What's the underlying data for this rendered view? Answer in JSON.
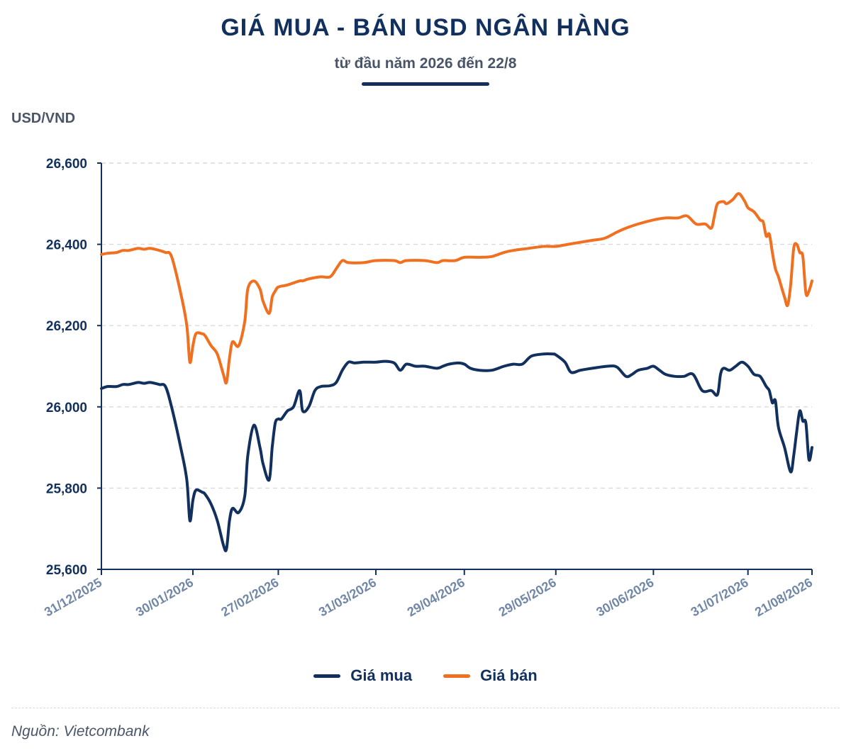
{
  "header": {
    "title": "GIÁ MUA - BÁN USD NGÂN HÀNG",
    "subtitle": "từ đầu năm 2026 đến 22/8"
  },
  "footer": {
    "source": "Nguồn: Vietcombank"
  },
  "colors": {
    "navy": "#12305e",
    "orange": "#f07020",
    "gray_text": "#4a5568",
    "axis_label": "#7187a6",
    "grid": "#d6dbe3"
  },
  "chart_data": {
    "type": "line",
    "title": "GIÁ MUA - BÁN USD NGÂN HÀNG",
    "subtitle": "từ đầu năm 2026 đến 22/8",
    "ylabel": "USD/VND",
    "xlabel": "",
    "ylim": [
      25600,
      26600
    ],
    "yticks": [
      25600,
      25800,
      26000,
      26200,
      26400,
      26600
    ],
    "ytick_labels": [
      "25,600",
      "25,800",
      "26,000",
      "26,200",
      "26,400",
      "26,600"
    ],
    "xlim": [
      "2025-12-31",
      "2026-08-21"
    ],
    "xticks": [
      "2025-12-31",
      "2026-01-30",
      "2026-02-27",
      "2026-03-31",
      "2026-04-29",
      "2026-05-29",
      "2026-06-30",
      "2026-07-31",
      "2026-08-21"
    ],
    "xtick_labels": [
      "31/12/2025",
      "30/01/2026",
      "27/02/2026",
      "31/03/2026",
      "29/04/2026",
      "29/05/2026",
      "30/06/2026",
      "31/07/2026",
      "21/08/2026"
    ],
    "grid": "horizontal dashed",
    "legend_position": "bottom-center",
    "series": [
      {
        "name": "Giá mua",
        "color": "#12305e",
        "points": [
          [
            "2025-12-31",
            26045
          ],
          [
            "2026-01-02",
            26050
          ],
          [
            "2026-01-05",
            26050
          ],
          [
            "2026-01-07",
            26055
          ],
          [
            "2026-01-09",
            26055
          ],
          [
            "2026-01-12",
            26060
          ],
          [
            "2026-01-14",
            26058
          ],
          [
            "2026-01-16",
            26060
          ],
          [
            "2026-01-19",
            26055
          ],
          [
            "2026-01-21",
            26050
          ],
          [
            "2026-01-23",
            26000
          ],
          [
            "2026-01-26",
            25900
          ],
          [
            "2026-01-28",
            25820
          ],
          [
            "2026-01-29",
            25720
          ],
          [
            "2026-01-30",
            25770
          ],
          [
            "2026-01-31",
            25795
          ],
          [
            "2026-02-02",
            25790
          ],
          [
            "2026-02-03",
            25785
          ],
          [
            "2026-02-05",
            25760
          ],
          [
            "2026-02-07",
            25720
          ],
          [
            "2026-02-09",
            25660
          ],
          [
            "2026-02-10",
            25650
          ],
          [
            "2026-02-11",
            25720
          ],
          [
            "2026-02-12",
            25750
          ],
          [
            "2026-02-14",
            25740
          ],
          [
            "2026-02-16",
            25780
          ],
          [
            "2026-02-17",
            25880
          ],
          [
            "2026-02-19",
            25955
          ],
          [
            "2026-02-21",
            25900
          ],
          [
            "2026-02-22",
            25860
          ],
          [
            "2026-02-24",
            25820
          ],
          [
            "2026-02-25",
            25900
          ],
          [
            "2026-02-26",
            25960
          ],
          [
            "2026-02-27",
            25970
          ],
          [
            "2026-02-28",
            25970
          ],
          [
            "2026-03-02",
            25990
          ],
          [
            "2026-03-04",
            26000
          ],
          [
            "2026-03-06",
            26040
          ],
          [
            "2026-03-07",
            25990
          ],
          [
            "2026-03-09",
            26000
          ],
          [
            "2026-03-11",
            26040
          ],
          [
            "2026-03-13",
            26050
          ],
          [
            "2026-03-16",
            26052
          ],
          [
            "2026-03-18",
            26060
          ],
          [
            "2026-03-20",
            26090
          ],
          [
            "2026-03-22",
            26110
          ],
          [
            "2026-03-24",
            26108
          ],
          [
            "2026-03-27",
            26110
          ],
          [
            "2026-03-31",
            26110
          ],
          [
            "2026-04-03",
            26112
          ],
          [
            "2026-04-06",
            26108
          ],
          [
            "2026-04-08",
            26090
          ],
          [
            "2026-04-10",
            26105
          ],
          [
            "2026-04-13",
            26100
          ],
          [
            "2026-04-16",
            26100
          ],
          [
            "2026-04-20",
            26095
          ],
          [
            "2026-04-22",
            26100
          ],
          [
            "2026-04-24",
            26105
          ],
          [
            "2026-04-27",
            26108
          ],
          [
            "2026-04-29",
            26105
          ],
          [
            "2026-05-01",
            26095
          ],
          [
            "2026-05-04",
            26090
          ],
          [
            "2026-05-08",
            26090
          ],
          [
            "2026-05-12",
            26100
          ],
          [
            "2026-05-15",
            26105
          ],
          [
            "2026-05-18",
            26105
          ],
          [
            "2026-05-21",
            26125
          ],
          [
            "2026-05-25",
            26130
          ],
          [
            "2026-05-28",
            26130
          ],
          [
            "2026-05-29",
            26128
          ],
          [
            "2026-06-01",
            26110
          ],
          [
            "2026-06-03",
            26085
          ],
          [
            "2026-06-06",
            26090
          ],
          [
            "2026-06-10",
            26095
          ],
          [
            "2026-06-15",
            26100
          ],
          [
            "2026-06-18",
            26098
          ],
          [
            "2026-06-21",
            26075
          ],
          [
            "2026-06-23",
            26080
          ],
          [
            "2026-06-25",
            26090
          ],
          [
            "2026-06-28",
            26095
          ],
          [
            "2026-06-30",
            26100
          ],
          [
            "2026-07-02",
            26090
          ],
          [
            "2026-07-04",
            26080
          ],
          [
            "2026-07-07",
            26075
          ],
          [
            "2026-07-10",
            26075
          ],
          [
            "2026-07-13",
            26080
          ],
          [
            "2026-07-16",
            26040
          ],
          [
            "2026-07-19",
            26040
          ],
          [
            "2026-07-21",
            26030
          ],
          [
            "2026-07-22",
            26080
          ],
          [
            "2026-07-23",
            26095
          ],
          [
            "2026-07-25",
            26090
          ],
          [
            "2026-07-27",
            26100
          ],
          [
            "2026-07-29",
            26110
          ],
          [
            "2026-07-31",
            26100
          ],
          [
            "2026-08-02",
            26080
          ],
          [
            "2026-08-04",
            26075
          ],
          [
            "2026-08-06",
            26050
          ],
          [
            "2026-08-07",
            26040
          ],
          [
            "2026-08-08",
            26010
          ],
          [
            "2026-08-09",
            26015
          ],
          [
            "2026-08-10",
            25950
          ],
          [
            "2026-08-12",
            25900
          ],
          [
            "2026-08-14",
            25840
          ],
          [
            "2026-08-15",
            25880
          ],
          [
            "2026-08-16",
            25940
          ],
          [
            "2026-08-17",
            25990
          ],
          [
            "2026-08-18",
            25965
          ],
          [
            "2026-08-19",
            25960
          ],
          [
            "2026-08-20",
            25870
          ],
          [
            "2026-08-21",
            25900
          ]
        ]
      },
      {
        "name": "Giá bán",
        "color": "#f07020",
        "points": [
          [
            "2025-12-31",
            26375
          ],
          [
            "2026-01-02",
            26378
          ],
          [
            "2026-01-05",
            26380
          ],
          [
            "2026-01-07",
            26385
          ],
          [
            "2026-01-09",
            26385
          ],
          [
            "2026-01-12",
            26390
          ],
          [
            "2026-01-14",
            26388
          ],
          [
            "2026-01-16",
            26390
          ],
          [
            "2026-01-19",
            26385
          ],
          [
            "2026-01-21",
            26380
          ],
          [
            "2026-01-23",
            26370
          ],
          [
            "2026-01-26",
            26280
          ],
          [
            "2026-01-28",
            26200
          ],
          [
            "2026-01-29",
            26110
          ],
          [
            "2026-01-30",
            26150
          ],
          [
            "2026-01-31",
            26180
          ],
          [
            "2026-02-02",
            26180
          ],
          [
            "2026-02-03",
            26175
          ],
          [
            "2026-02-05",
            26150
          ],
          [
            "2026-02-07",
            26130
          ],
          [
            "2026-02-09",
            26080
          ],
          [
            "2026-02-10",
            26060
          ],
          [
            "2026-02-11",
            26120
          ],
          [
            "2026-02-12",
            26160
          ],
          [
            "2026-02-14",
            26150
          ],
          [
            "2026-02-16",
            26210
          ],
          [
            "2026-02-17",
            26290
          ],
          [
            "2026-02-19",
            26310
          ],
          [
            "2026-02-21",
            26290
          ],
          [
            "2026-02-22",
            26260
          ],
          [
            "2026-02-24",
            26230
          ],
          [
            "2026-02-25",
            26270
          ],
          [
            "2026-02-26",
            26285
          ],
          [
            "2026-02-27",
            26295
          ],
          [
            "2026-03-02",
            26300
          ],
          [
            "2026-03-06",
            26310
          ],
          [
            "2026-03-07",
            26310
          ],
          [
            "2026-03-09",
            26315
          ],
          [
            "2026-03-13",
            26320
          ],
          [
            "2026-03-16",
            26320
          ],
          [
            "2026-03-18",
            26340
          ],
          [
            "2026-03-20",
            26360
          ],
          [
            "2026-03-22",
            26355
          ],
          [
            "2026-03-27",
            26355
          ],
          [
            "2026-03-31",
            26360
          ],
          [
            "2026-04-06",
            26360
          ],
          [
            "2026-04-08",
            26355
          ],
          [
            "2026-04-10",
            26360
          ],
          [
            "2026-04-16",
            26360
          ],
          [
            "2026-04-20",
            26355
          ],
          [
            "2026-04-22",
            26360
          ],
          [
            "2026-04-26",
            26360
          ],
          [
            "2026-04-29",
            26368
          ],
          [
            "2026-05-04",
            26368
          ],
          [
            "2026-05-08",
            26370
          ],
          [
            "2026-05-12",
            26380
          ],
          [
            "2026-05-15",
            26385
          ],
          [
            "2026-05-20",
            26390
          ],
          [
            "2026-05-25",
            26395
          ],
          [
            "2026-05-29",
            26395
          ],
          [
            "2026-06-02",
            26400
          ],
          [
            "2026-06-06",
            26405
          ],
          [
            "2026-06-10",
            26410
          ],
          [
            "2026-06-14",
            26415
          ],
          [
            "2026-06-18",
            26430
          ],
          [
            "2026-06-21",
            26440
          ],
          [
            "2026-06-25",
            26450
          ],
          [
            "2026-06-30",
            26460
          ],
          [
            "2026-07-04",
            26465
          ],
          [
            "2026-07-08",
            26465
          ],
          [
            "2026-07-11",
            26470
          ],
          [
            "2026-07-14",
            26450
          ],
          [
            "2026-07-17",
            26450
          ],
          [
            "2026-07-19",
            26440
          ],
          [
            "2026-07-20",
            26470
          ],
          [
            "2026-07-21",
            26500
          ],
          [
            "2026-07-23",
            26505
          ],
          [
            "2026-07-24",
            26500
          ],
          [
            "2026-07-26",
            26510
          ],
          [
            "2026-07-28",
            26525
          ],
          [
            "2026-07-30",
            26505
          ],
          [
            "2026-07-31",
            26490
          ],
          [
            "2026-08-02",
            26480
          ],
          [
            "2026-08-04",
            26460
          ],
          [
            "2026-08-05",
            26455
          ],
          [
            "2026-08-06",
            26420
          ],
          [
            "2026-08-07",
            26425
          ],
          [
            "2026-08-08",
            26380
          ],
          [
            "2026-08-09",
            26340
          ],
          [
            "2026-08-10",
            26320
          ],
          [
            "2026-08-12",
            26270
          ],
          [
            "2026-08-13",
            26250
          ],
          [
            "2026-08-14",
            26300
          ],
          [
            "2026-08-15",
            26390
          ],
          [
            "2026-08-16",
            26400
          ],
          [
            "2026-08-17",
            26380
          ],
          [
            "2026-08-18",
            26370
          ],
          [
            "2026-08-19",
            26280
          ],
          [
            "2026-08-20",
            26285
          ],
          [
            "2026-08-21",
            26310
          ]
        ]
      }
    ]
  }
}
